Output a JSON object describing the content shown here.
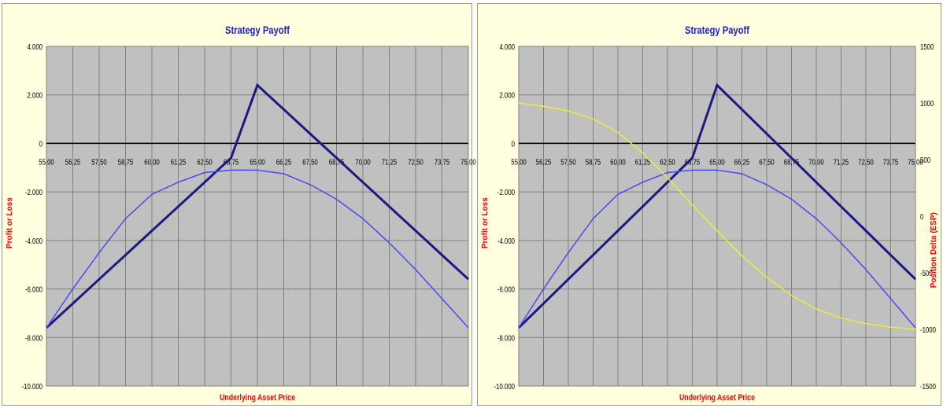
{
  "colors": {
    "panel_bg": "#ffffe0",
    "plot_bg": "#c0c0c0",
    "grid": "#7f7f7f",
    "title": "#1c1ccc",
    "axis_label": "#ff0000",
    "payoff_expiry": "#1a1a80",
    "payoff_current": "#4a4af0",
    "delta": "#ecec3a"
  },
  "chart_data": [
    {
      "type": "line",
      "title": "Strategy Payoff",
      "xlabel": "Underlying Asset Price",
      "ylabel": "Profit or Loss",
      "x": [
        55,
        56.25,
        57.5,
        58.75,
        60,
        61.25,
        62.5,
        63.75,
        65,
        66.25,
        67.5,
        68.75,
        70,
        71.25,
        72.5,
        73.75,
        75
      ],
      "x_tick_labels": [
        "55,00",
        "56,25",
        "57,50",
        "58,75",
        "60,00",
        "61,25",
        "62,50",
        "63,75",
        "65,00",
        "66,25",
        "67,50",
        "68,75",
        "70,00",
        "71,25",
        "72,50",
        "73,75",
        "75,00"
      ],
      "ylim": [
        -10000,
        4000
      ],
      "y_ticks": [
        4000,
        2000,
        0,
        -2000,
        -4000,
        -6000,
        -8000,
        -10000
      ],
      "y_tick_labels": [
        "4.000",
        "2.000",
        "0",
        "-2.000",
        "-4.000",
        "-6.000",
        "-8.000",
        "-10.000"
      ],
      "grid": true,
      "series": [
        {
          "values": [
            -7600,
            -6600,
            -5600,
            -4600,
            -3600,
            -2600,
            -1600,
            -600,
            2400,
            1400,
            400,
            -600,
            -1600,
            -2600,
            -3600,
            -4600,
            -5600
          ]
        },
        {
          "values": [
            -7600,
            -6000,
            -4500,
            -3100,
            -2100,
            -1600,
            -1200,
            -1100,
            -1100,
            -1250,
            -1700,
            -2300,
            -3100,
            -4100,
            -5200,
            -6400,
            -7600
          ]
        }
      ]
    },
    {
      "type": "line",
      "title": "Strategy Payoff",
      "xlabel": "Underlying Asset Price",
      "ylabel": "Profit or Loss",
      "y2label": "Position Delta (ESP)",
      "x": [
        55,
        56.25,
        57.5,
        58.75,
        60,
        61.25,
        62.5,
        63.75,
        65,
        66.25,
        67.5,
        68.75,
        70,
        71.25,
        72.5,
        73.75,
        75
      ],
      "x_tick_labels": [
        "55,00",
        "56,25",
        "57,50",
        "58,75",
        "60,00",
        "61,25",
        "62,50",
        "63,75",
        "65,00",
        "66,25",
        "67,50",
        "68,75",
        "70,00",
        "71,25",
        "72,50",
        "73,75",
        "75,00"
      ],
      "ylim": [
        -10000,
        4000
      ],
      "y_ticks": [
        4000,
        2000,
        0,
        -2000,
        -4000,
        -6000,
        -8000,
        -10000
      ],
      "y_tick_labels": [
        "4.000",
        "2.000",
        "0",
        "-2.000",
        "-4.000",
        "-6.000",
        "-8.000",
        "-10.000"
      ],
      "y2lim": [
        -1500,
        1500
      ],
      "y2_ticks": [
        1500,
        1000,
        500,
        0,
        -500,
        -1000,
        -1500
      ],
      "y2_tick_labels": [
        "1500",
        "1000",
        "500",
        "0",
        "-500",
        "-1000",
        "-1500"
      ],
      "grid": true,
      "series": [
        {
          "values": [
            -7600,
            -6600,
            -5600,
            -4600,
            -3600,
            -2600,
            -1600,
            -600,
            2400,
            1400,
            400,
            -600,
            -1600,
            -2600,
            -3600,
            -4600,
            -5600
          ]
        },
        {
          "values": [
            -7600,
            -6000,
            -4500,
            -3100,
            -2100,
            -1600,
            -1200,
            -1100,
            -1100,
            -1250,
            -1700,
            -2300,
            -3100,
            -4100,
            -5200,
            -6400,
            -7600
          ]
        },
        {
          "axis": "y2",
          "values": [
            1000,
            970,
            930,
            860,
            740,
            560,
            340,
            100,
            -130,
            -350,
            -540,
            -700,
            -820,
            -900,
            -950,
            -980,
            -1000
          ]
        }
      ]
    }
  ]
}
